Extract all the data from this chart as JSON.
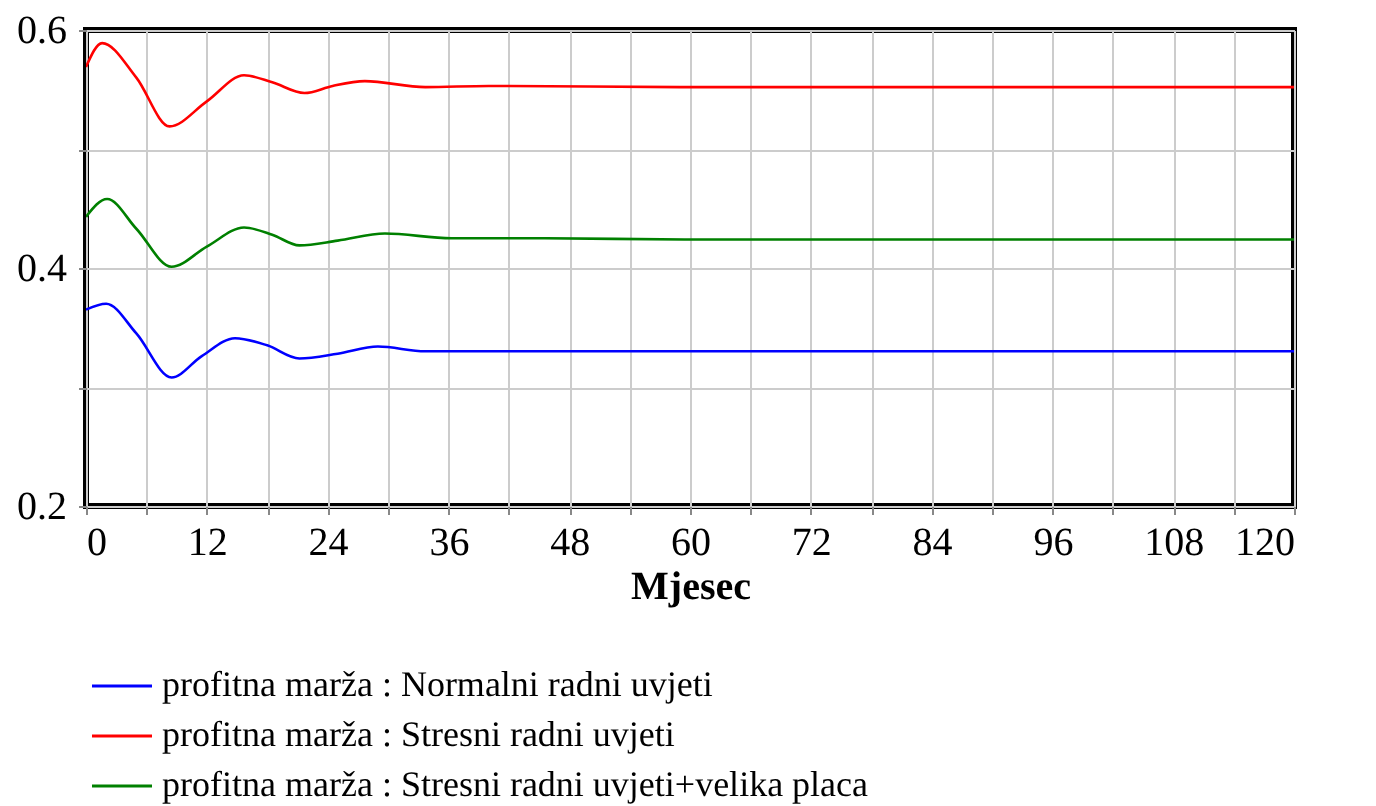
{
  "chart_data": {
    "type": "line",
    "xlabel": "Mjesec",
    "xlim": [
      0,
      120
    ],
    "xticks": [
      0,
      {
        "value": 6,
        "label": null
      },
      12,
      {
        "value": 18,
        "label": null
      },
      24,
      {
        "value": 30,
        "label": null
      },
      36,
      {
        "value": 42,
        "label": null
      },
      48,
      {
        "value": 54,
        "label": null
      },
      60,
      {
        "value": 66,
        "label": null
      },
      72,
      {
        "value": 78,
        "label": null
      },
      84,
      {
        "value": 90,
        "label": null
      },
      96,
      {
        "value": 102,
        "label": null
      },
      108,
      {
        "value": 114,
        "label": null
      },
      120
    ],
    "ylim": [
      0.2,
      0.6
    ],
    "yticks": [
      0.2,
      {
        "value": 0.3,
        "label": null
      },
      0.4,
      {
        "value": 0.5,
        "label": null
      },
      0.6
    ],
    "grid": true,
    "legend": "bottom",
    "line_style": "solid",
    "series": [
      {
        "name": "profitna marža : Normalni radni uvjeti",
        "color": "#0000ff",
        "x": [
          0,
          2,
          5,
          8.5,
          11.5,
          14.8,
          18,
          21.2,
          25,
          29,
          33.7,
          40,
          60,
          90,
          120
        ],
        "values": [
          0.365,
          0.37,
          0.345,
          0.308,
          0.326,
          0.341,
          0.335,
          0.324,
          0.328,
          0.334,
          0.33,
          0.33,
          0.33,
          0.33,
          0.33
        ]
      },
      {
        "name": "profitna marža : Stresni radni uvjeti",
        "color": "#ff0000",
        "x": [
          0,
          1.6,
          5,
          8.3,
          12,
          15.7,
          18.5,
          21.7,
          24.5,
          27.7,
          33.7,
          40,
          60,
          90,
          120
        ],
        "values": [
          0.569,
          0.589,
          0.56,
          0.519,
          0.54,
          0.562,
          0.556,
          0.547,
          0.553,
          0.557,
          0.552,
          0.553,
          0.552,
          0.552,
          0.552
        ]
      },
      {
        "name": "profitna marža : Stresni radni uvjeti+velika placa",
        "color": "#008000",
        "x": [
          0,
          2.1,
          5,
          8.5,
          12,
          15.7,
          18.5,
          21.2,
          25,
          29.7,
          36.3,
          45,
          60,
          90,
          120
        ],
        "values": [
          0.443,
          0.458,
          0.433,
          0.401,
          0.418,
          0.434,
          0.428,
          0.419,
          0.423,
          0.429,
          0.425,
          0.425,
          0.424,
          0.424,
          0.424
        ]
      }
    ]
  }
}
